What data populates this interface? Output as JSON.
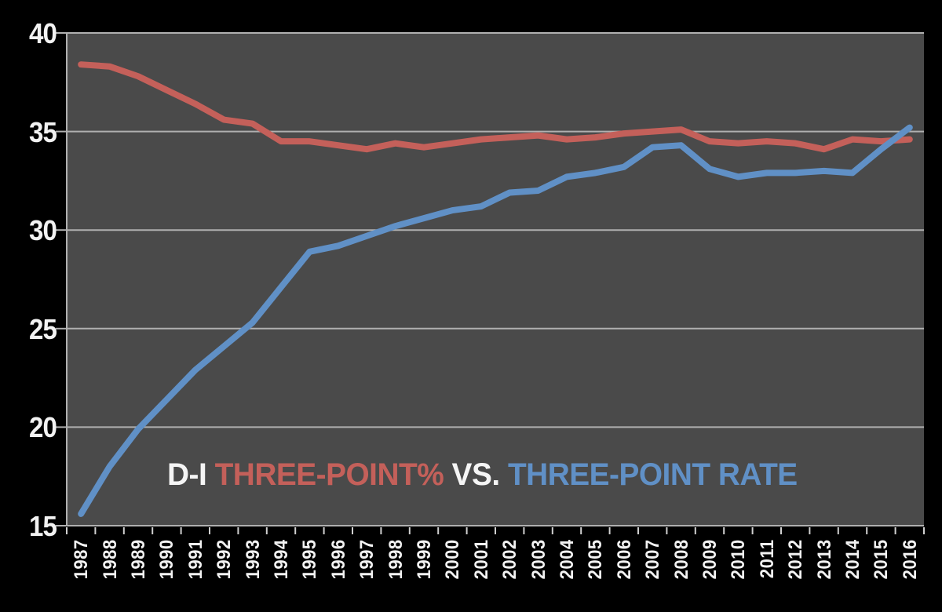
{
  "colors": {
    "background": "#000000",
    "plot_background": "#4a4a4a",
    "gridline": "#b0b0b0",
    "axis_line": "#b0b0b0",
    "tick": "#d0d0d0",
    "label_text": "#f2f2f2",
    "red": "#c4605a",
    "blue": "#6090c6"
  },
  "title": {
    "part1": "D-I",
    "part2": "THREE-POINT%",
    "part3": "VS.",
    "part4": "THREE-POINT RATE"
  },
  "chart_data": {
    "type": "line",
    "title": "D-I THREE-POINT% VS. THREE-POINT RATE",
    "x": [
      1987,
      1988,
      1989,
      1990,
      1991,
      1992,
      1993,
      1994,
      1995,
      1996,
      1997,
      1998,
      1999,
      2000,
      2001,
      2002,
      2003,
      2004,
      2005,
      2006,
      2007,
      2008,
      2009,
      2010,
      2011,
      2012,
      2013,
      2014,
      2015,
      2016
    ],
    "series": [
      {
        "name": "THREE-POINT%",
        "color_key": "red",
        "values": [
          38.4,
          38.3,
          37.8,
          37.1,
          36.4,
          35.6,
          35.4,
          34.5,
          34.5,
          34.3,
          34.1,
          34.4,
          34.2,
          34.4,
          34.6,
          34.7,
          34.8,
          34.6,
          34.7,
          34.9,
          35.0,
          35.1,
          34.5,
          34.4,
          34.5,
          34.4,
          34.1,
          34.6,
          34.5,
          34.6
        ]
      },
      {
        "name": "THREE-POINT RATE",
        "color_key": "blue",
        "values": [
          15.6,
          18.0,
          19.9,
          21.4,
          22.9,
          24.1,
          25.3,
          27.1,
          28.9,
          29.2,
          29.7,
          30.2,
          30.6,
          31.0,
          31.2,
          31.9,
          32.0,
          32.7,
          32.9,
          33.2,
          34.2,
          34.3,
          33.1,
          32.7,
          32.9,
          32.9,
          33.0,
          32.9,
          34.1,
          35.2
        ]
      }
    ],
    "ylim": [
      15,
      40
    ],
    "yticks": [
      15,
      20,
      25,
      30,
      35,
      40
    ],
    "xlabel": "",
    "ylabel": "",
    "grid": true,
    "legend_position": "inline-title",
    "x_tick_label_rotation": -90
  }
}
